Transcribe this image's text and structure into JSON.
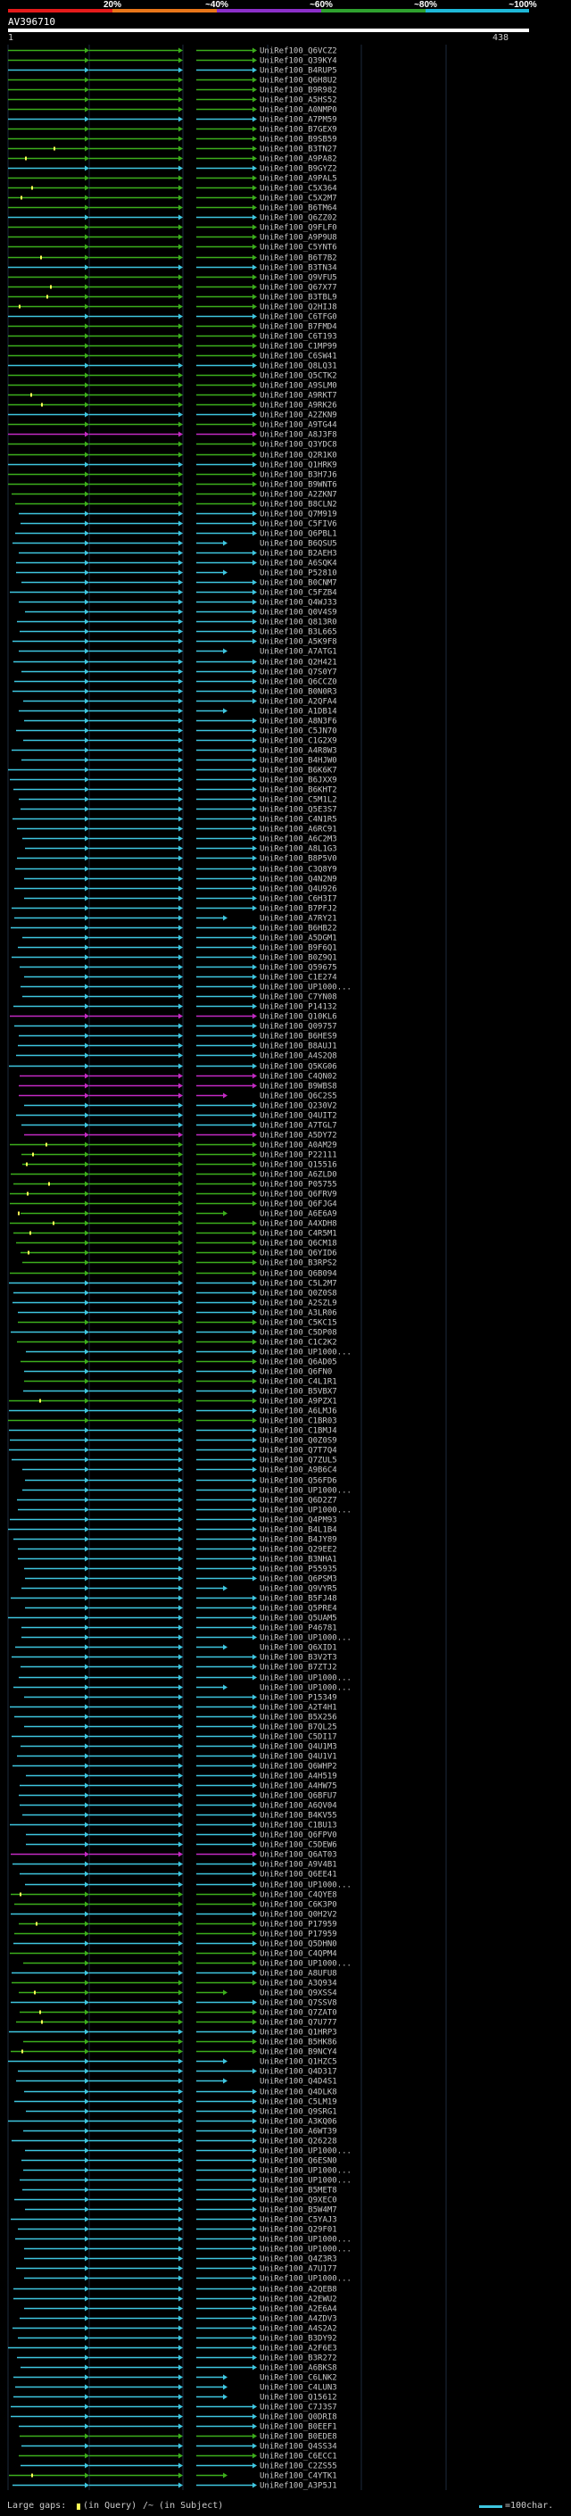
{
  "header": {
    "title": "AV396710",
    "query_start": "1",
    "query_end": "438"
  },
  "legend": {
    "ticks": [
      "20%",
      "~40%",
      "~60%",
      "~80%",
      "~100%"
    ],
    "colors": [
      "#e51b1b",
      "#e8761a",
      "#8b2fc9",
      "#2fa12f",
      "#1fb8d8"
    ]
  },
  "footer": {
    "gaps_label": "Large gaps:",
    "in_query": "(in Query)",
    "in_subject": "/~ (in Subject)",
    "scale": "=100char."
  },
  "colors": {
    "cyan": "#3ec6e0",
    "green": "#3cae1c",
    "magenta": "#c32ac3",
    "dark": "#1a4a12"
  },
  "hits": [
    "UniRef100_Q6VCZ2",
    "UniRef100_Q39KY4",
    "UniRef100_B4RUP5",
    "UniRef100_Q6H8U2",
    "UniRef100_B9R982",
    "UniRef100_A5HS52",
    "UniRef100_A0NMP0",
    "UniRef100_A7PM59",
    "UniRef100_B7GEX9",
    "UniRef100_B9SB59",
    "UniRef100_B3TN27",
    "UniRef100_A9PA82",
    "UniRef100_B9GYZ2",
    "UniRef100_A9PAL5",
    "UniRef100_C5X364",
    "UniRef100_C5X2M7",
    "UniRef100_B6TM64",
    "UniRef100_Q6ZZ02",
    "UniRef100_Q9FLF0",
    "UniRef100_A9P9U8",
    "UniRef100_C5YNT6",
    "UniRef100_B6T7B2",
    "UniRef100_B3TN34",
    "UniRef100_Q9VFU5",
    "UniRef100_Q67X77",
    "UniRef100_B3TBL9",
    "UniRef100_Q2HIJ8",
    "UniRef100_C6TFG0",
    "UniRef100_B7FMD4",
    "UniRef100_C6T193",
    "UniRef100_C1MP99",
    "UniRef100_C6SW41",
    "UniRef100_Q8LQ31",
    "UniRef100_Q5CTK2",
    "UniRef100_A9SLM0",
    "UniRef100_A9RKT7",
    "UniRef100_A9RK26",
    "UniRef100_A2ZKN9",
    "UniRef100_A9TG44",
    "UniRef100_A8J3F8",
    "UniRef100_Q3YDC8",
    "UniRef100_Q2R1K0",
    "UniRef100_Q1HRK9",
    "UniRef100_B3H7J6",
    "UniRef100_B9WNT6",
    "UniRef100_A2ZKN7",
    "UniRef100_B8CLN2",
    "UniRef100_Q7M919",
    "UniRef100_C5FIV6",
    "UniRef100_Q6PBL1",
    "UniRef100_B6QSU5",
    "UniRef100_B2AEH3",
    "UniRef100_A6SQK4",
    "UniRef100_P52810",
    "UniRef100_B0CNM7",
    "UniRef100_C5FZB4",
    "UniRef100_Q4WJ33",
    "UniRef100_Q0V4S9",
    "UniRef100_Q813R0",
    "UniRef100_B3L665",
    "UniRef100_A5K9F8",
    "UniRef100_A7ATG1",
    "UniRef100_Q2H421",
    "UniRef100_Q7S0Y7",
    "UniRef100_Q6CCZ0",
    "UniRef100_B0N0R3",
    "UniRef100_A2QFA4",
    "UniRef100_A1DB14",
    "UniRef100_A8N3F6",
    "UniRef100_C5JN70",
    "UniRef100_C1G2X9",
    "UniRef100_A4R8W3",
    "UniRef100_B4HJW0",
    "UniRef100_B6K6K7",
    "UniRef100_B6JXX9",
    "UniRef100_B6KHT2",
    "UniRef100_C5M1L2",
    "UniRef100_Q5E3S7",
    "UniRef100_C4N1R5",
    "UniRef100_A6RC91",
    "UniRef100_A6C2M3",
    "UniRef100_A8L1G3",
    "UniRef100_B8P5V0",
    "UniRef100_C3Q8Y9",
    "UniRef100_Q4N2N9",
    "UniRef100_Q4U926",
    "UniRef100_C6H3I7",
    "UniRef100_B7PFJ2",
    "UniRef100_A7RY21",
    "UniRef100_B6HB22",
    "UniRef100_A5DGM1",
    "UniRef100_B9F6Q1",
    "UniRef100_B0Z9Q1",
    "UniRef100_Q59675",
    "UniRef100_C1E274",
    "UniRef100_UP1000...",
    "UniRef100_C7YN08",
    "UniRef100_P14132",
    "UniRef100_Q10KL6",
    "UniRef100_Q09757",
    "UniRef100_B6HES9",
    "UniRef100_B8AUJ1",
    "UniRef100_A4S2Q8",
    "UniRef100_Q5KG06",
    "UniRef100_C4QN02",
    "UniRef100_B9WBS8",
    "UniRef100_Q6C2S5",
    "UniRef100_Q230V2",
    "UniRef100_Q4UIT2",
    "UniRef100_A7TGL7",
    "UniRef100_A5DY72",
    "UniRef100_A0AM29",
    "UniRef100_P22111",
    "UniRef100_Q15516",
    "UniRef100_A6ZLD0",
    "UniRef100_P05755",
    "UniRef100_Q6FRV9",
    "UniRef100_Q6FJG4",
    "UniRef100_A6E6A9",
    "UniRef100_A4XDH8",
    "UniRef100_C4R5M1",
    "UniRef100_Q6CM18",
    "UniRef100_Q6YID6",
    "UniRef100_B3RPS2",
    "UniRef100_Q6B094",
    "UniRef100_C5L2M7",
    "UniRef100_Q0Z0S8",
    "UniRef100_A2SZL9",
    "UniRef100_A3LR06",
    "UniRef100_C5KC15",
    "UniRef100_C5DP08",
    "UniRef100_C1C2K2",
    "UniRef100_UP1000...",
    "UniRef100_Q6AD05",
    "UniRef100_Q6FN0",
    "UniRef100_C4L1R1",
    "UniRef100_B5VBX7",
    "UniRef100_A9PZX1",
    "UniRef100_A6LMJ6",
    "UniRef100_C1BR03",
    "UniRef100_C1BMJ4",
    "UniRef100_Q0Z0S9",
    "UniRef100_Q7T7Q4",
    "UniRef100_Q7ZUL5",
    "UniRef100_A9B6C4",
    "UniRef100_Q56FD6",
    "UniRef100_UP1000...",
    "UniRef100_Q6D2Z7",
    "UniRef100_UP1000...",
    "UniRef100_Q4PM93",
    "UniRef100_B4L1B4",
    "UniRef100_B4JY89",
    "UniRef100_Q29EE2",
    "UniRef100_B3NHA1",
    "UniRef100_P55935",
    "UniRef100_Q6PSM3",
    "UniRef100_Q9VYR5",
    "UniRef100_B5FJ48",
    "UniRef100_Q5PRE4",
    "UniRef100_Q5UAM5",
    "UniRef100_P46781",
    "UniRef100_UP1000...",
    "UniRef100_Q6XID1",
    "UniRef100_B3V2T3",
    "UniRef100_B7ZTJ2",
    "UniRef100_UP1000...",
    "UniRef100_UP1000...",
    "UniRef100_P15349",
    "UniRef100_A2T4H1",
    "UniRef100_B5X256",
    "UniRef100_B7QL25",
    "UniRef100_C5DI17",
    "UniRef100_Q4U1M3",
    "UniRef100_Q4U1V1",
    "UniRef100_Q6WHP2",
    "UniRef100_A4H519",
    "UniRef100_A4HW75",
    "UniRef100_Q6BFU7",
    "UniRef100_A6QV04",
    "UniRef100_B4KV55",
    "UniRef100_C1BU13",
    "UniRef100_Q6FPV0",
    "UniRef100_C5DEW6",
    "UniRef100_Q6AT03",
    "UniRef100_A9V4B1",
    "UniRef100_Q6EE41",
    "UniRef100_UP1000...",
    "UniRef100_C4QYE8",
    "UniRef100_C6K3P0",
    "UniRef100_Q0H2V2",
    "UniRef100_P17959",
    "UniRef100_P17959",
    "UniRef100_Q5DHN0",
    "UniRef100_C4QPM4",
    "UniRef100_UP1000...",
    "UniRef100_A8UFU8",
    "UniRef100_A3Q934",
    "UniRef100_Q9XSS4",
    "UniRef100_Q7SSV8",
    "UniRef100_Q7ZAT0",
    "UniRef100_Q7U777",
    "UniRef100_Q1HRP3",
    "UniRef100_B5HK86",
    "UniRef100_B9NCY4",
    "UniRef100_Q1HZC5",
    "UniRef100_Q4D317",
    "UniRef100_Q4D4S1",
    "UniRef100_Q4DLK8",
    "UniRef100_C5LM19",
    "UniRef100_Q9SRG1",
    "UniRef100_A3KQ06",
    "UniRef100_A6WT39",
    "UniRef100_Q26228",
    "UniRef100_UP1000...",
    "UniRef100_Q6ESN0",
    "UniRef100_UP1000...",
    "UniRef100_UP1000...",
    "UniRef100_B5MET8",
    "UniRef100_Q9XEC0",
    "UniRef100_B5W4M7",
    "UniRef100_C5YAJ3",
    "UniRef100_Q29F01",
    "UniRef100_UP1000...",
    "UniRef100_UP1000...",
    "UniRef100_Q4Z3R3",
    "UniRef100_A7U177",
    "UniRef100_UP1000...",
    "UniRef100_A2QEB8",
    "UniRef100_A2EWU2",
    "UniRef100_A2E6A4",
    "UniRef100_A4ZDV3",
    "UniRef100_A4S2A2",
    "UniRef100_B3DY92",
    "UniRef100_A2F6E3",
    "UniRef100_B3R272",
    "UniRef100_A6BKS8",
    "UniRef100_C6LNK2",
    "UniRef100_C4LUN3",
    "UniRef100_Q15612",
    "UniRef100_C7J3S7",
    "UniRef100_Q0DRI8",
    "UniRef100_B0EEF1",
    "UniRef100_B0EDE8",
    "UniRef100_Q4SS34",
    "UniRef100_C6ECC1",
    "UniRef100_C2ZS55",
    "UniRef100_C4YTK1",
    "UniRef100_A3P5J1"
  ]
}
